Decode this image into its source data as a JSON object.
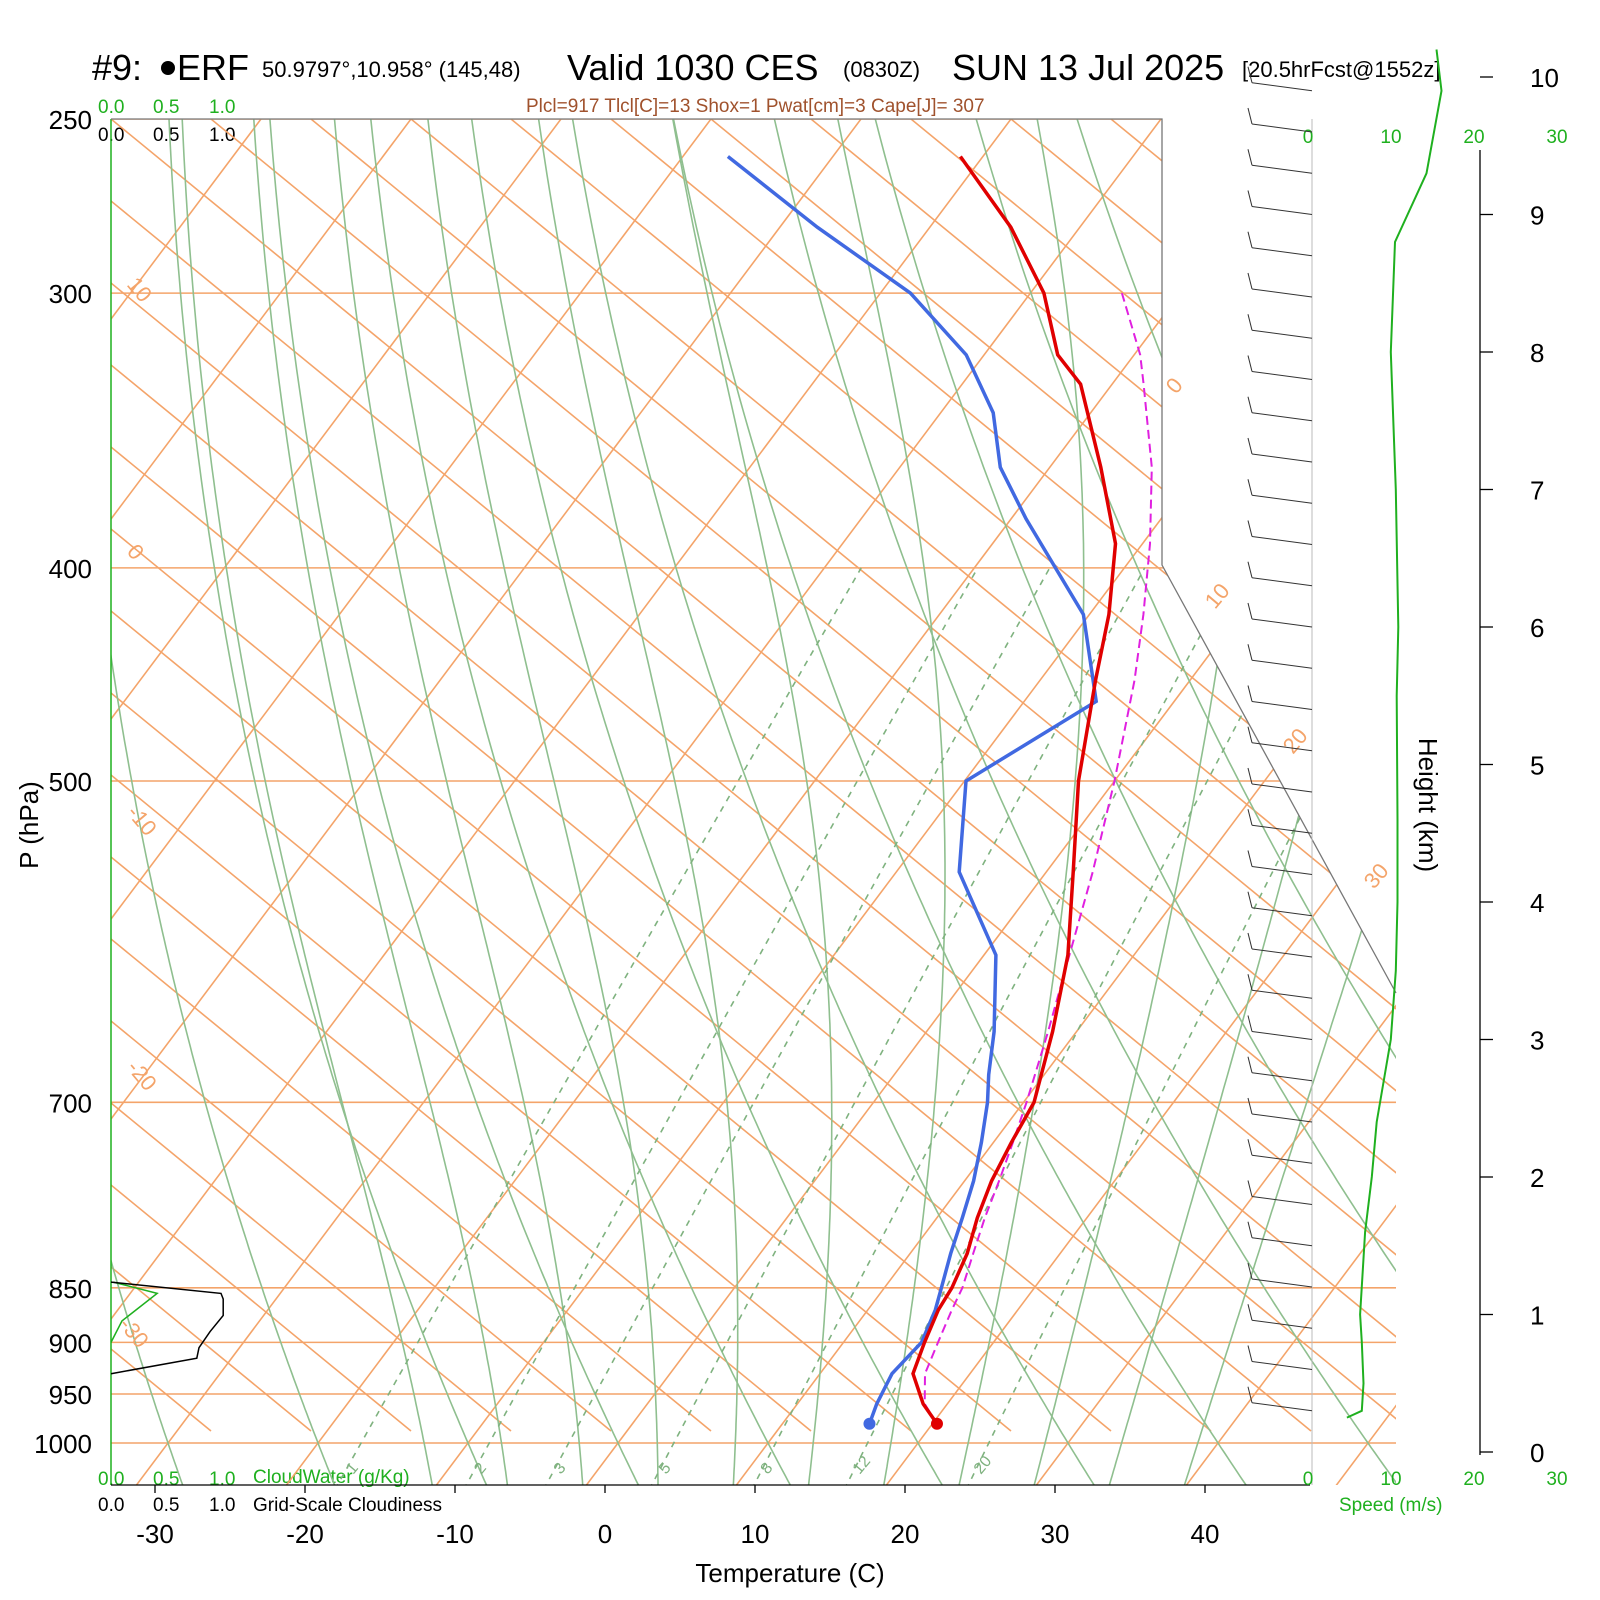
{
  "header": {
    "id_marker": "#9: ",
    "station": "ERF",
    "coords": "50.9797°,10.958° (145,48)",
    "valid": "Valid 1030 CES",
    "utc": "(0830Z)",
    "date": "SUN 13 Jul 2025",
    "forecast": "[20.5hrFcst@1552z]",
    "stats": "Plcl=917 Tlcl[C]=13 Shox=1 Pwat[cm]=3 Cape[J]= 307"
  },
  "labels": {
    "pressure_axis": "P (hPa)",
    "temperature_axis": "Temperature (C)",
    "height_axis": "Height (km)",
    "speed_axis": "Speed (m/s)",
    "cloudwater": "CloudWater (g/Kg)",
    "cloudiness": "Grid-Scale Cloudiness",
    "scale_green": [
      "0.0",
      "0.5",
      "1.0"
    ],
    "scale_black": [
      "0.0",
      "0.5",
      "1.0"
    ],
    "speed_ticks": [
      "0",
      "10",
      "20",
      "30"
    ]
  },
  "colors": {
    "isotherm": "#f4a46a",
    "dry_adiabat": "#8fbf8f",
    "moist_adiabat": "#8fbf8f",
    "mixing_ratio": "#7fb27f",
    "temperature": "#e00000",
    "dewpoint": "#4169e1",
    "parcel": "#e020e0",
    "wind_speed": "#1fb01f"
  },
  "chart_data": {
    "type": "line",
    "plot": "skew-T log-p sounding",
    "pressure_range_hpa": [
      1000,
      250
    ],
    "temperature_range_c": [
      -30,
      40
    ],
    "pressure_ticks": [
      250,
      300,
      400,
      500,
      700,
      850,
      900,
      950,
      1000
    ],
    "temperature_ticks": [
      -30,
      -20,
      -10,
      0,
      10,
      20,
      30,
      40
    ],
    "height_ticks_km": [
      "0",
      "1",
      "2",
      "3",
      "4",
      "5",
      "6",
      "7",
      "8",
      "9",
      "10"
    ],
    "isotherm_labels": [
      "0",
      "10",
      "20",
      "30",
      "0",
      "-10",
      "-20",
      "-30",
      "10"
    ],
    "mixing_ratio_labels": [
      "1",
      "2",
      "3",
      "5",
      "8",
      "12",
      "20"
    ],
    "series": [
      {
        "name": "Temperature",
        "p": [
          980,
          960,
          930,
          900,
          870,
          850,
          820,
          790,
          760,
          730,
          700,
          650,
          600,
          550,
          500,
          450,
          420,
          390,
          360,
          330,
          320,
          300,
          280,
          260
        ],
        "t": [
          20.3,
          18.4,
          16.2,
          15.4,
          14.7,
          14.5,
          13.8,
          12.7,
          11.8,
          11.2,
          10.7,
          8.4,
          5.6,
          1.8,
          -2.4,
          -6.3,
          -8.7,
          -11.8,
          -16.6,
          -22.1,
          -25.1,
          -29.1,
          -34.6,
          -41.5
        ]
      },
      {
        "name": "Dewpoint",
        "p": [
          980,
          960,
          930,
          900,
          870,
          850,
          820,
          790,
          760,
          730,
          700,
          680,
          650,
          600,
          550,
          500,
          460,
          420,
          380,
          360,
          340,
          320,
          300,
          280,
          260
        ],
        "t": [
          15.8,
          15.3,
          14.8,
          15.2,
          14.5,
          13.8,
          12.7,
          11.7,
          10.6,
          9.2,
          7.6,
          6.3,
          4.5,
          0.8,
          -5.8,
          -9.9,
          -5.2,
          -10.4,
          -19.0,
          -23.3,
          -26.5,
          -31.2,
          -38.0,
          -47.5,
          -57.0
        ]
      }
    ],
    "parcel_t": [
      20.3,
      18.5,
      17.0,
      16.3,
      15.6,
      15.2,
      14.2,
      13.2,
      12.3,
      11.3,
      10.2,
      8.1,
      5.7,
      3.1,
      0.0,
      -3.7,
      -6.4,
      -9.5,
      -13.2,
      -17.9,
      -19.6,
      -23.9
    ],
    "parcel_p": [
      980,
      960,
      930,
      900,
      870,
      850,
      820,
      790,
      760,
      730,
      700,
      650,
      600,
      550,
      500,
      450,
      420,
      390,
      360,
      330,
      320,
      300
    ],
    "wind_speed": {
      "z_km": [
        0.25,
        0.3,
        0.5,
        0.8,
        1.0,
        1.3,
        1.6,
        2.0,
        2.4,
        3.0,
        3.5,
        4.0,
        4.6,
        5.5,
        6.0,
        7.0,
        8.0,
        8.8,
        9.3,
        9.9,
        10.2
      ],
      "speed_ms": [
        4.2,
        6.0,
        6.2,
        6.0,
        5.8,
        6.1,
        6.4,
        7.2,
        7.8,
        9.5,
        10.1,
        10.3,
        10.3,
        10.2,
        10.4,
        10.1,
        9.5,
        10.0,
        13.8,
        15.6,
        15.0
      ]
    },
    "cloudwater_g_kg": {
      "p": [
        845,
        855,
        880,
        900
      ],
      "v": [
        0.02,
        0.42,
        0.1,
        0.0
      ]
    },
    "cloudiness": {
      "p": [
        845,
        855,
        860,
        875,
        890,
        905,
        915,
        930
      ],
      "v": [
        0.0,
        1.0,
        1.02,
        1.02,
        0.9,
        0.8,
        0.78,
        0.0
      ]
    }
  }
}
